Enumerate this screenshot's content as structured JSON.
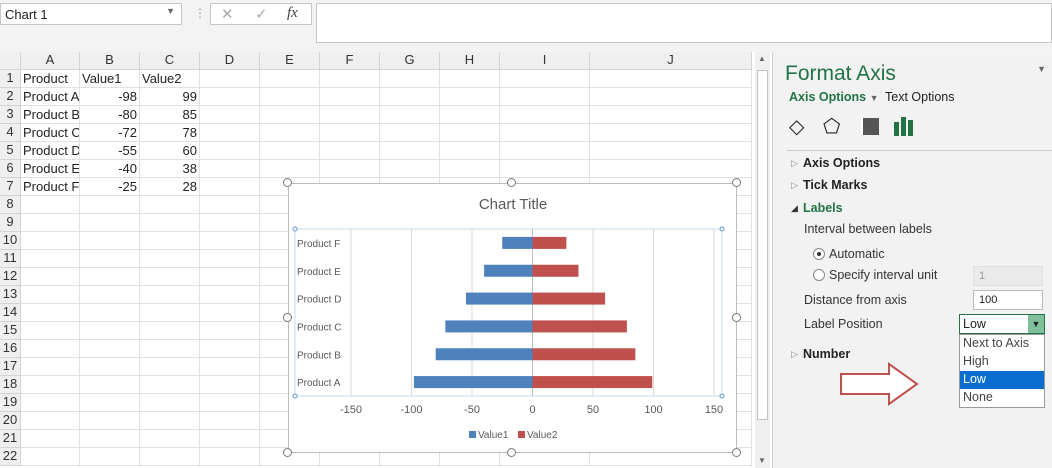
{
  "name_box": "Chart 1",
  "formula_bar": {
    "cancel_icon": "✕",
    "enter_icon": "✓",
    "fx_label": "fx",
    "value": ""
  },
  "columns": [
    "A",
    "B",
    "C",
    "D",
    "E",
    "F",
    "G",
    "H",
    "I",
    "J"
  ],
  "rows": [
    "1",
    "2",
    "3",
    "4",
    "5",
    "6",
    "7",
    "8",
    "9",
    "10",
    "11",
    "12",
    "13",
    "14",
    "15",
    "16",
    "17",
    "18",
    "19",
    "20",
    "21",
    "22"
  ],
  "cells": [
    [
      "Product",
      "Value1",
      "Value2"
    ],
    [
      "Product A",
      "-98",
      "99"
    ],
    [
      "Product B",
      "-80",
      "85"
    ],
    [
      "Product C",
      "-72",
      "78"
    ],
    [
      "Product D",
      "-55",
      "60"
    ],
    [
      "Product E",
      "-40",
      "38"
    ],
    [
      "Product F",
      "-25",
      "28"
    ]
  ],
  "chart_data": {
    "type": "bar",
    "orientation": "horizontal",
    "title": "Chart Title",
    "categories": [
      "Product A",
      "Product B",
      "Product C",
      "Product D",
      "Product E",
      "Product F"
    ],
    "series": [
      {
        "name": "Value1",
        "values": [
          -98,
          -80,
          -72,
          -55,
          -40,
          -25
        ],
        "color": "#4f81bd"
      },
      {
        "name": "Value2",
        "values": [
          99,
          85,
          78,
          60,
          38,
          28
        ],
        "color": "#c0504d"
      }
    ],
    "xlim": [
      -150,
      150
    ],
    "xticks": [
      "-150",
      "-100",
      "-50",
      "0",
      "50",
      "100",
      "150"
    ],
    "grid": true,
    "legend": "bottom",
    "category_label_position": "low"
  },
  "panel": {
    "title": "Format Axis",
    "tab_axis": "Axis Options",
    "tab_text": "Text Options",
    "sections": {
      "axis_options": "Axis Options",
      "tick_marks": "Tick Marks",
      "labels": "Labels",
      "number": "Number"
    },
    "interval_label": "Interval between labels",
    "automatic": "Automatic",
    "specify": "Specify interval unit",
    "specify_value": "1",
    "distance_label": "Distance from axis",
    "distance_value": "100",
    "label_position_label": "Label Position",
    "label_position_value": "Low",
    "options": [
      "Next to Axis",
      "High",
      "Low",
      "None"
    ],
    "selected_option": "Low"
  }
}
